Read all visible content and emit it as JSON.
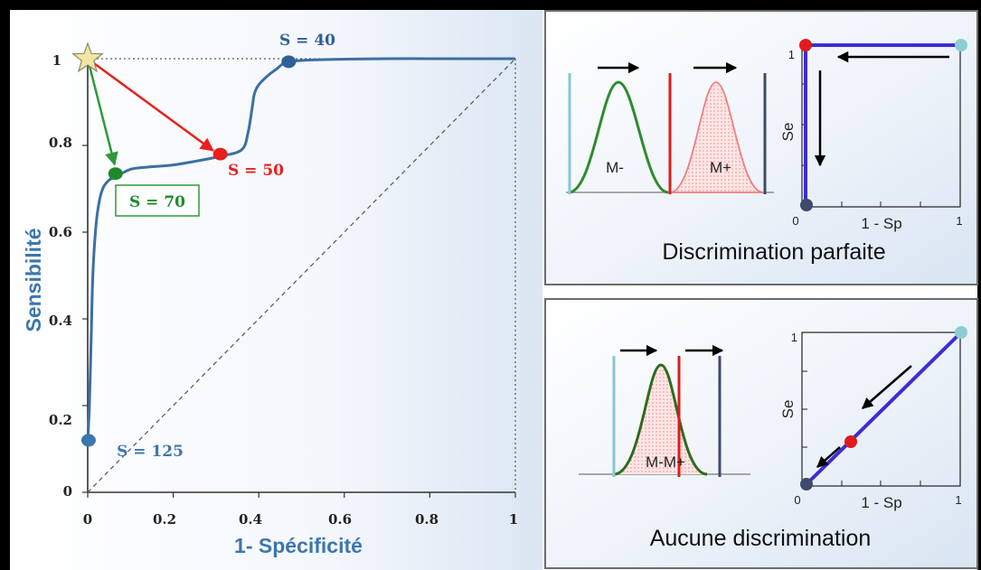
{
  "chart_data": [
    {
      "type": "line",
      "title": "",
      "xlabel": "1- Spécificité",
      "ylabel": "Sensibilité",
      "xlim": [
        0,
        1
      ],
      "ylim": [
        0,
        1
      ],
      "xticks": [
        "0",
        "0.2",
        "0.4",
        "0.6",
        "0.8",
        "1"
      ],
      "yticks": [
        "0",
        "0.2",
        "0.4",
        "0.6",
        "0.8",
        "1"
      ],
      "grid": false,
      "series": [
        {
          "x": [
            0,
            0.004,
            0.008,
            0.012,
            0.018,
            0.025,
            0.035,
            0.05,
            0.07,
            0.1,
            0.14,
            0.2,
            0.26,
            0.31,
            0.36,
            0.375,
            0.385,
            0.39,
            0.4,
            0.42,
            0.44,
            0.47,
            0.55,
            0.7,
            0.85,
            1
          ],
          "y": [
            0.12,
            0.2,
            0.35,
            0.5,
            0.6,
            0.66,
            0.7,
            0.72,
            0.73,
            0.745,
            0.75,
            0.755,
            0.765,
            0.775,
            0.79,
            0.83,
            0.89,
            0.92,
            0.94,
            0.96,
            0.975,
            0.993,
            0.998,
            1,
            1,
            1
          ]
        },
        {
          "x": [
            0,
            1
          ],
          "y": [
            0,
            1
          ]
        }
      ],
      "points": [
        {
          "label": "S = 40",
          "x": 0.47,
          "y": 0.993,
          "color": "#2e5f97"
        },
        {
          "label": "S = 50",
          "x": 0.31,
          "y": 0.78,
          "color": "#e8211d"
        },
        {
          "label": "S = 70",
          "x": 0.065,
          "y": 0.735,
          "color": "#1d8a2c"
        },
        {
          "label": "S = 125",
          "x": 0.002,
          "y": 0.12,
          "color": "#3d76ae"
        }
      ],
      "ideal_point": {
        "x": 0,
        "y": 1
      },
      "colors": {
        "roc": "#3b6fa3",
        "red": "#e8211d",
        "green": "#2e9a3a",
        "star": "#f3e6a2"
      }
    },
    {
      "type": "line",
      "caption": "Discrimination parfaite",
      "xlabel": "1 - Sp",
      "ylabel": "Se",
      "xticks": [
        "0",
        "1"
      ],
      "yticks": [
        "1"
      ],
      "distribution_labels": [
        "M-",
        "M+"
      ],
      "series": [
        {
          "x": [
            0,
            0,
            1
          ],
          "y": [
            0,
            1,
            1
          ]
        }
      ],
      "colors": {
        "curve": "#3d2cd6",
        "negative": "#2e8b2e",
        "positive": "#f08080",
        "threshold": "#e11b1b"
      }
    },
    {
      "type": "line",
      "caption": "Aucune discrimination",
      "xlabel": "1 - Sp",
      "ylabel": "Se",
      "xticks": [
        "0",
        "1"
      ],
      "yticks": [
        "1"
      ],
      "distribution_label": "M-M+",
      "series": [
        {
          "x": [
            0,
            1
          ],
          "y": [
            0,
            1
          ]
        }
      ],
      "colors": {
        "curve": "#3d2cd6",
        "negative": "#2e8b2e",
        "positive": "#f08080",
        "threshold": "#e11b1b"
      }
    }
  ]
}
